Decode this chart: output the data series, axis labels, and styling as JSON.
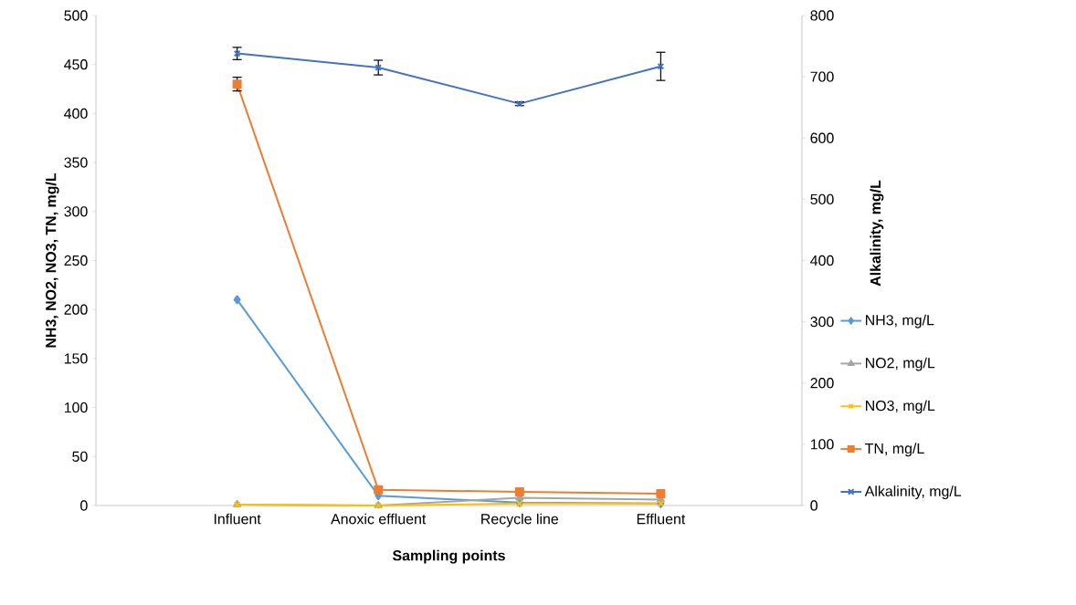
{
  "chart_data": {
    "type": "line",
    "xlabel": "Sampling points",
    "ylabel": "NH3, NO2, NO3, TN, mg/L",
    "y2label": "Alkalinity, mg/L",
    "categories": [
      null,
      "Influent",
      "Anoxic effluent",
      "Recycle line",
      "Effluent",
      null
    ],
    "series": [
      {
        "name": "NH3, mg/L",
        "color": "#5b9bd5",
        "marker": "diamond",
        "values": [
          null,
          210,
          10,
          3,
          2,
          null
        ]
      },
      {
        "name": "NO2, mg/L",
        "color": "#a5a5a5",
        "marker": "triangle",
        "values": [
          null,
          1,
          0,
          8,
          6,
          null
        ]
      },
      {
        "name": "NO3, mg/L",
        "color": "#ffc000",
        "marker": "cross",
        "values": [
          null,
          1,
          0,
          2,
          2,
          null
        ]
      },
      {
        "name": "TN, mg/L",
        "color": "#ed7d31",
        "marker": "square",
        "values": [
          null,
          430,
          16,
          14,
          12,
          null
        ],
        "errors": [
          null,
          7,
          null,
          null,
          null,
          null
        ]
      },
      {
        "name": "Alkalinity, mg/L",
        "color": "#4472c4",
        "marker": "cross",
        "axis": "y2",
        "values": [
          null,
          738,
          715,
          656,
          717,
          null
        ],
        "errors": [
          null,
          10,
          12,
          3,
          23,
          null
        ]
      }
    ],
    "ylim": [
      0,
      500
    ],
    "yticks": [
      0,
      50,
      100,
      150,
      200,
      250,
      300,
      350,
      400,
      450,
      500
    ],
    "y2lim": [
      0,
      800
    ],
    "y2ticks": [
      0,
      100,
      200,
      300,
      400,
      500,
      600,
      700,
      800
    ],
    "grid": false,
    "legend": "right",
    "line_style": "solid"
  }
}
